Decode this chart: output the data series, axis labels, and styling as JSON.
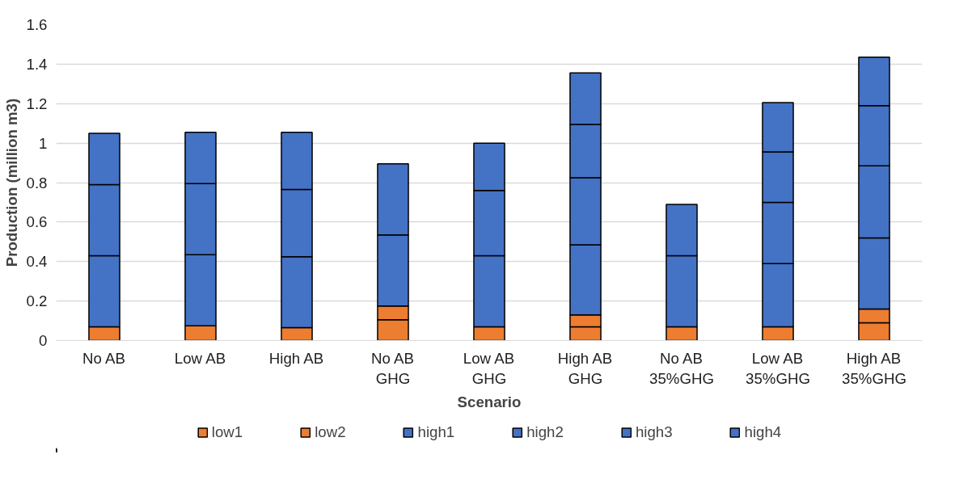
{
  "chart_data": {
    "type": "bar",
    "stacked": true,
    "xlabel": "Scenario",
    "ylabel": "Production (million m3)",
    "categories": [
      "No AB",
      "Low AB",
      "High AB",
      "No AB\nGHG",
      "Low AB\nGHG",
      "High AB\nGHG",
      "No AB\n35%GHG",
      "Low AB\n35%GHG",
      "High AB\n35%GHG"
    ],
    "series": [
      {
        "name": "low1",
        "color": "#ed7d31",
        "values": [
          0.07,
          0.075,
          0.065,
          0.105,
          0.07,
          0.07,
          0.07,
          0.07,
          0.09
        ]
      },
      {
        "name": "low2",
        "color": "#ed7d31",
        "values": [
          null,
          null,
          null,
          0.07,
          null,
          0.06,
          null,
          null,
          0.07
        ]
      },
      {
        "name": "high1",
        "color": "#4472c4",
        "values": [
          0.36,
          0.36,
          0.36,
          0.36,
          0.36,
          0.355,
          0.36,
          0.32,
          0.36
        ]
      },
      {
        "name": "high2",
        "color": "#4472c4",
        "values": [
          0.36,
          0.36,
          0.34,
          0.36,
          0.33,
          0.34,
          0.26,
          0.31,
          0.365
        ]
      },
      {
        "name": "high3",
        "color": "#4472c4",
        "values": [
          0.26,
          0.26,
          0.29,
          null,
          0.24,
          0.27,
          null,
          0.255,
          0.305
        ]
      },
      {
        "name": "high4",
        "color": "#4472c4",
        "values": [
          null,
          null,
          null,
          null,
          null,
          0.26,
          null,
          0.25,
          0.245
        ]
      }
    ],
    "ylim": [
      0,
      1.6
    ],
    "yticks": [
      0,
      0.2,
      0.4,
      0.6,
      0.8,
      1,
      1.2,
      1.4,
      1.6
    ],
    "grid": "y",
    "legend": "bottom"
  }
}
